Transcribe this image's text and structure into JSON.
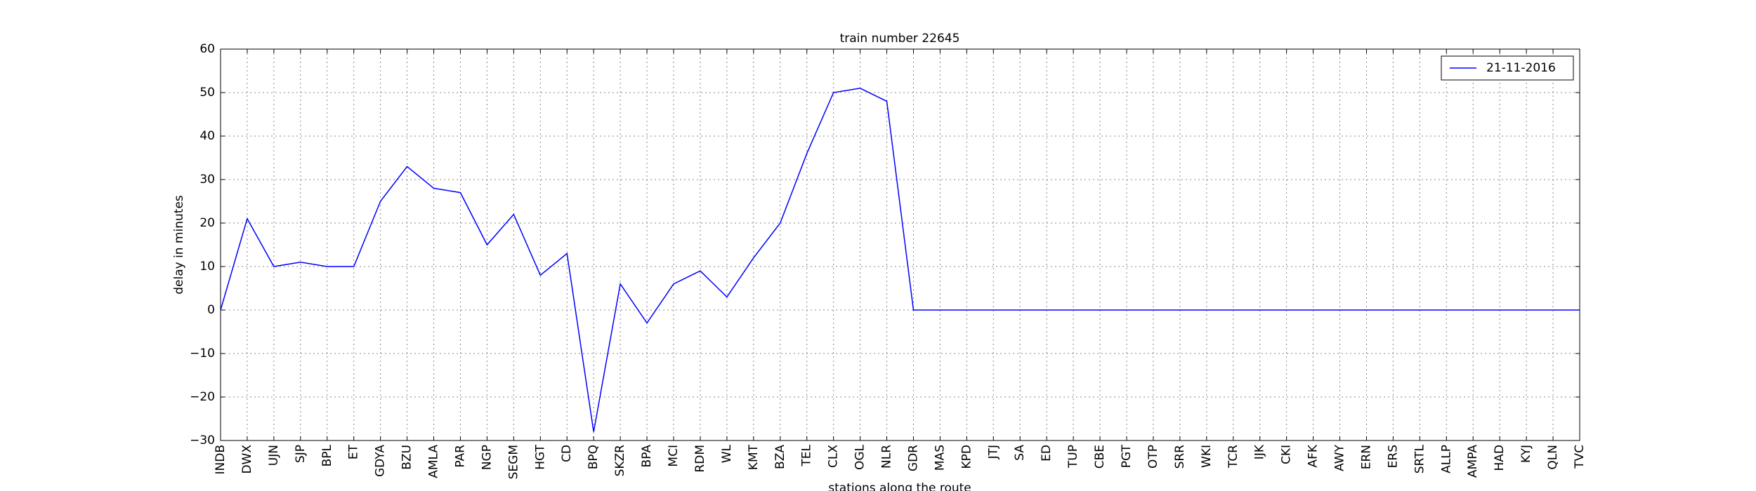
{
  "chart_data": {
    "type": "line",
    "title": "train number 22645",
    "xlabel": "stations along the route",
    "ylabel": "delay in minutes",
    "categories": [
      "INDB",
      "DWX",
      "UJN",
      "SJP",
      "BPL",
      "ET",
      "GDYA",
      "BZU",
      "AMLA",
      "PAR",
      "NGP",
      "SEGM",
      "HGT",
      "CD",
      "BPQ",
      "SKZR",
      "BPA",
      "MCI",
      "RDM",
      "WL",
      "KMT",
      "BZA",
      "TEL",
      "CLX",
      "OGL",
      "NLR",
      "GDR",
      "MAS",
      "KPD",
      "JTJ",
      "SA",
      "ED",
      "TUP",
      "CBE",
      "PGT",
      "OTP",
      "SRR",
      "WKI",
      "TCR",
      "IJK",
      "CKI",
      "AFK",
      "AWY",
      "ERN",
      "ERS",
      "SRTL",
      "ALLP",
      "AMPA",
      "HAD",
      "KYJ",
      "QLN",
      "TVC"
    ],
    "series": [
      {
        "name": "21-11-2016",
        "color": "#0000ff",
        "values": [
          0,
          21,
          10,
          11,
          10,
          10,
          25,
          33,
          28,
          27,
          15,
          22,
          8,
          13,
          -28,
          6,
          -3,
          6,
          9,
          3,
          12,
          20,
          36,
          50,
          51,
          48,
          0,
          0,
          0,
          0,
          0,
          0,
          0,
          0,
          0,
          0,
          0,
          0,
          0,
          0,
          0,
          0,
          0,
          0,
          0,
          0,
          0,
          0,
          0,
          0,
          0,
          0
        ]
      }
    ],
    "ylim": [
      -30,
      60
    ],
    "yticks": [
      {
        "value": -30,
        "label": "−30"
      },
      {
        "value": -20,
        "label": "−20"
      },
      {
        "value": -10,
        "label": "−10"
      },
      0,
      10,
      20,
      30,
      40,
      50,
      60
    ],
    "grid": true,
    "legend": "upper right"
  }
}
